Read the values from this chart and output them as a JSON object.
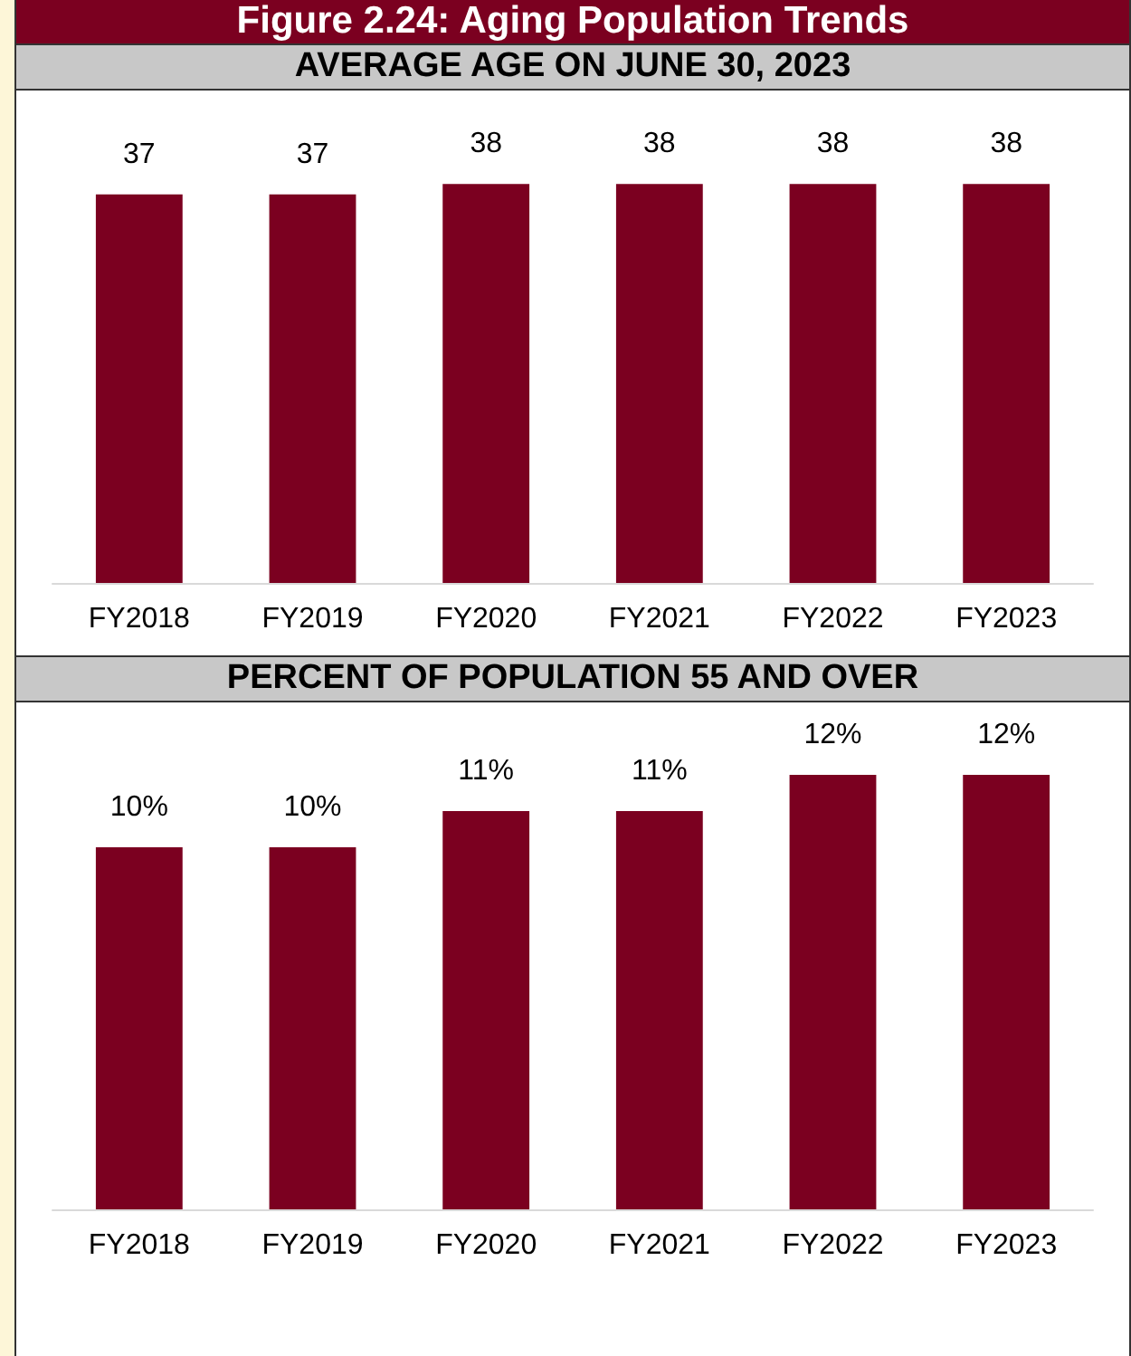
{
  "chart_data": [
    {
      "type": "bar",
      "title": "Figure 2.24: Aging Population Trends",
      "subtitle": "AVERAGE AGE ON JUNE 30, 2023",
      "categories": [
        "FY2018",
        "FY2019",
        "FY2020",
        "FY2021",
        "FY2022",
        "FY2023"
      ],
      "values": [
        37,
        37,
        38,
        38,
        38,
        38
      ],
      "color": "#7b0020",
      "data_labels": true
    },
    {
      "type": "bar",
      "subtitle": "PERCENT OF POPULATION 55 AND OVER",
      "categories": [
        "FY2018",
        "FY2019",
        "FY2020",
        "FY2021",
        "FY2022",
        "FY2023"
      ],
      "values": [
        10,
        10,
        11,
        11,
        12,
        12
      ],
      "color": "#7b0020",
      "value_labels": [
        "10%",
        "10%",
        "11%",
        "11%",
        "12%",
        "12%"
      ]
    }
  ]
}
